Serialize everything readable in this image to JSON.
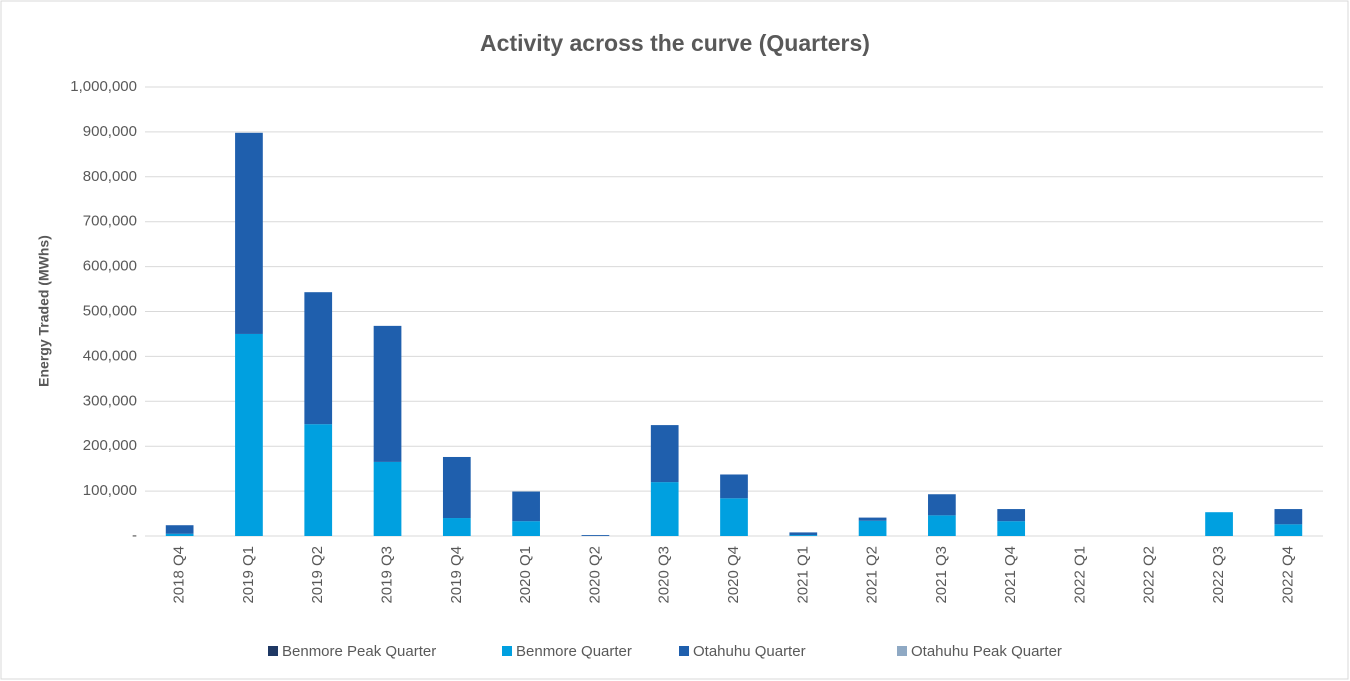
{
  "chart_data": {
    "type": "stacked_bar",
    "title": "Activity across the curve (Quarters)",
    "y_label": "Energy Traded (MWhs)",
    "categories": [
      "2018 Q4",
      "2019 Q1",
      "2019 Q2",
      "2019 Q3",
      "2019 Q4",
      "2020 Q1",
      "2020 Q2",
      "2020 Q3",
      "2020 Q4",
      "2021 Q1",
      "2021 Q2",
      "2021 Q3",
      "2021 Q4",
      "2022 Q1",
      "2022 Q2",
      "2022 Q3",
      "2022 Q4"
    ],
    "series": [
      {
        "name": "Benmore Peak Quarter",
        "color": "#1f3864",
        "values": [
          0,
          0,
          0,
          0,
          0,
          0,
          0,
          0,
          0,
          0,
          0,
          0,
          0,
          0,
          0,
          0,
          0
        ]
      },
      {
        "name": "Benmore Quarter",
        "color": "#00a0e0",
        "values": [
          5000,
          450000,
          249000,
          165000,
          40000,
          33000,
          0,
          120000,
          84000,
          2000,
          34000,
          46000,
          33000,
          0,
          0,
          53000,
          26000
        ]
      },
      {
        "name": "Otahuhu Quarter",
        "color": "#1f5fad",
        "values": [
          19000,
          448000,
          294000,
          303000,
          136000,
          66000,
          2000,
          127000,
          53000,
          6000,
          7000,
          47000,
          27000,
          0,
          0,
          0,
          34000
        ]
      },
      {
        "name": "Otahuhu Peak Quarter",
        "color": "#8fa9c4",
        "values": [
          0,
          0,
          0,
          0,
          0,
          0,
          0,
          0,
          0,
          0,
          0,
          0,
          0,
          0,
          0,
          0,
          0
        ]
      }
    ],
    "ylim": [
      0,
      1000000
    ],
    "yticks": [
      {
        "value": 0,
        "label": "-"
      },
      {
        "value": 100000,
        "label": "100,000"
      },
      {
        "value": 200000,
        "label": "200,000"
      },
      {
        "value": 300000,
        "label": "300,000"
      },
      {
        "value": 400000,
        "label": "400,000"
      },
      {
        "value": 500000,
        "label": "500,000"
      },
      {
        "value": 600000,
        "label": "600,000"
      },
      {
        "value": 700000,
        "label": "700,000"
      },
      {
        "value": 800000,
        "label": "800,000"
      },
      {
        "value": 900000,
        "label": "900,000"
      },
      {
        "value": 1000000,
        "label": "1,000,000"
      }
    ],
    "grid": true,
    "legend": "bottom"
  }
}
